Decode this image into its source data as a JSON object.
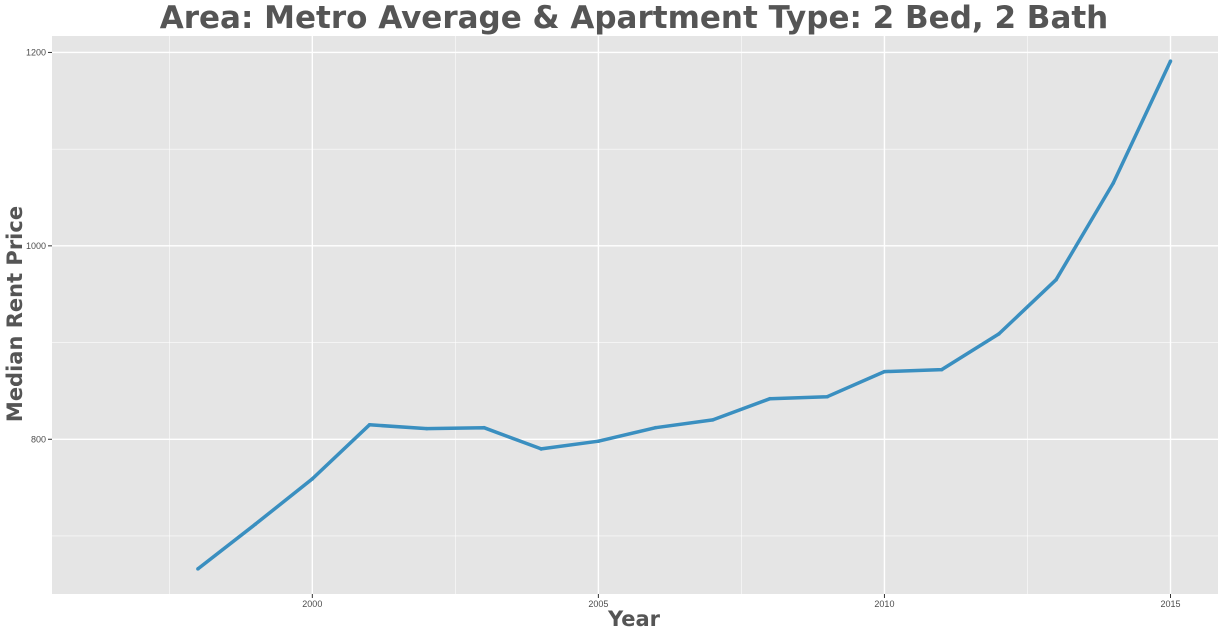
{
  "chart_data": {
    "type": "line",
    "title": "Area: Metro Average & Apartment Type: 2 Bed, 2 Bath",
    "xlabel": "Year",
    "ylabel": "Median Rent Price",
    "x": [
      1998,
      1999,
      2000,
      2001,
      2002,
      2003,
      2004,
      2005,
      2006,
      2007,
      2008,
      2009,
      2010,
      2011,
      2012,
      2013,
      2014,
      2015
    ],
    "series": [
      {
        "values": [
          666,
          712,
          759,
          815,
          811,
          812,
          790,
          798,
          812,
          820,
          842,
          844,
          870,
          872,
          909,
          965,
          1065,
          1191
        ]
      }
    ],
    "xlim": [
      1995.45,
      2015.83
    ],
    "ylim": [
      640,
      1217
    ],
    "x_ticks": [
      2000,
      2005,
      2010,
      2015
    ],
    "y_ticks": [
      800,
      1000,
      1200
    ],
    "grid": true,
    "line_color": "#3a8fc0",
    "panel_color": "#e5e5e5",
    "grid_color": "#ffffff"
  }
}
